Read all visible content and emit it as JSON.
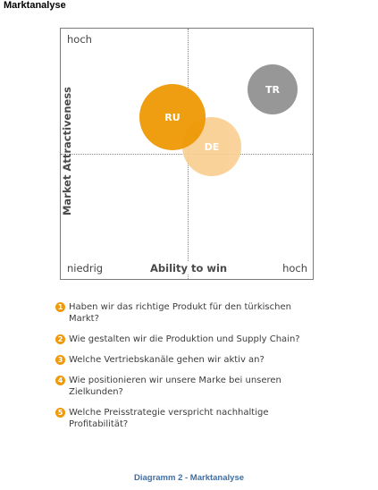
{
  "page": {
    "title": "Marktanalyse"
  },
  "matrix": {
    "x_axis_label": "Ability to win",
    "y_axis_label": "Market Attractiveness",
    "y_top_label": "hoch",
    "x_low_label": "niedrig",
    "x_high_label": "hoch",
    "bubbles": [
      {
        "label": "RU",
        "color": "#ef9a0a"
      },
      {
        "label": "DE",
        "color": "#f9cf92"
      },
      {
        "label": "TR",
        "color": "#979797"
      }
    ]
  },
  "questions": [
    {
      "number": "1",
      "text": "Haben wir das richtige Produkt für den türkischen Markt?"
    },
    {
      "number": "2",
      "text": "Wie gestalten wir die Produktion und Supply Chain?"
    },
    {
      "number": "3",
      "text": "Welche Vertriebskanäle gehen wir aktiv an?"
    },
    {
      "number": "4",
      "text": "Wie positionieren wir unsere Marke bei unseren Zielkunden?"
    },
    {
      "number": "5",
      "text": "Welche Preisstrategie verspricht nachhaltige Profitabilität?"
    }
  ],
  "caption": "Diagramm 2 - Marktanalyse",
  "colors": {
    "accent_orange": "#ef9a0a",
    "caption_blue": "#3f6fa8"
  }
}
